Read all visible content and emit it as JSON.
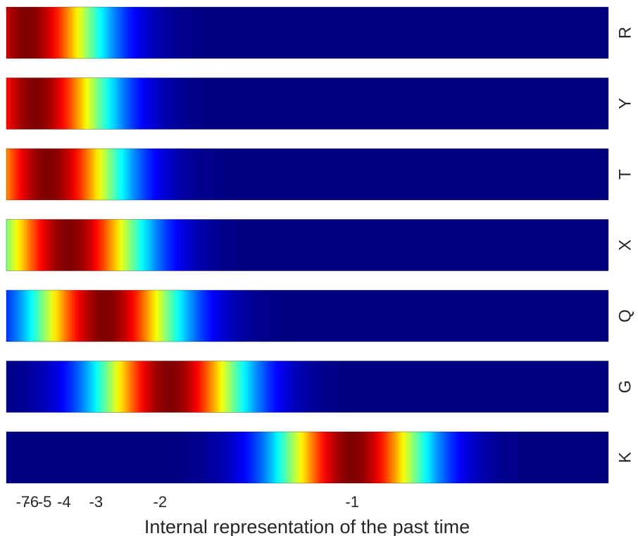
{
  "chart_data": {
    "type": "heatmap",
    "colormap": "jet",
    "xlabel": "Internal representation of the past time",
    "xticks": [
      -7,
      -6,
      -5,
      -4,
      -3,
      -2,
      -1
    ],
    "xtick_labels": [
      "-7",
      "-6",
      "-5",
      "-4",
      "-3",
      "-2",
      "-1"
    ],
    "xscale": "reciprocal",
    "xlim": [
      -10,
      -0.6
    ],
    "rows": [
      {
        "label": "R",
        "peak": -6.5
      },
      {
        "label": "Y",
        "peak": -5.7
      },
      {
        "label": "T",
        "peak": -4.8
      },
      {
        "label": "X",
        "peak": -3.8
      },
      {
        "label": "Q",
        "peak": -2.8
      },
      {
        "label": "G",
        "peak": -1.9
      },
      {
        "label": "K",
        "peak": -1.0
      }
    ]
  }
}
